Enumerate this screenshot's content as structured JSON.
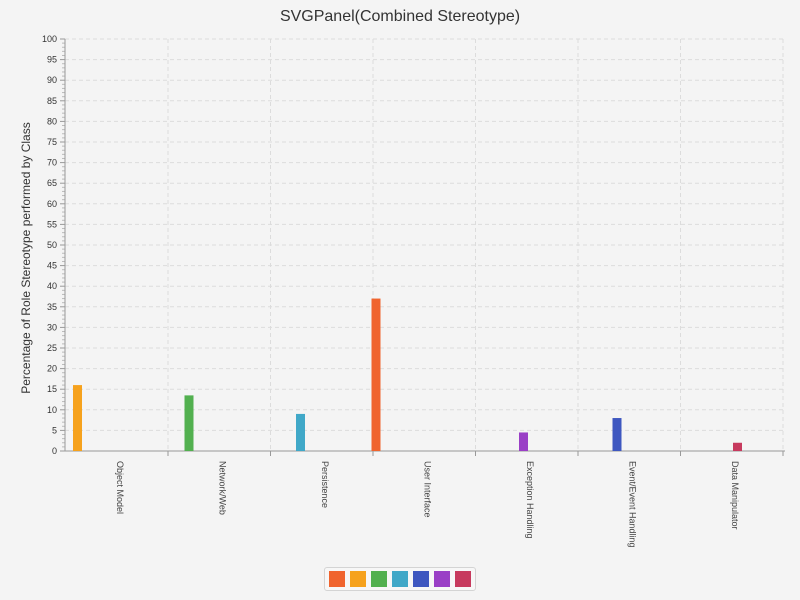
{
  "chart_data": {
    "type": "bar",
    "title": "SVGPanel(Combined Stereotype)",
    "xlabel": "",
    "ylabel": "Percentage of Role Stereotype performed by Class",
    "ylim": [
      0,
      100
    ],
    "yticks": [
      0,
      5,
      10,
      15,
      20,
      25,
      30,
      35,
      40,
      45,
      50,
      55,
      60,
      65,
      70,
      75,
      80,
      85,
      90,
      95,
      100
    ],
    "categories": [
      "Object Model",
      "Network/Web",
      "Persistence",
      "User Interface",
      "Exception Handling",
      "Event/Event Handling",
      "Data Manipulator"
    ],
    "series": [
      {
        "color": "#f0642e",
        "values": [
          0,
          0,
          0,
          37,
          0,
          0,
          0
        ]
      },
      {
        "color": "#f6a21d",
        "values": [
          16,
          0,
          0,
          0,
          0,
          0,
          0
        ]
      },
      {
        "color": "#52b04f",
        "values": [
          0,
          13.5,
          0,
          0,
          0,
          0,
          0
        ]
      },
      {
        "color": "#40a8c8",
        "values": [
          0,
          0,
          9,
          0,
          0,
          0,
          0
        ]
      },
      {
        "color": "#3e57c0",
        "values": [
          0,
          0,
          0,
          0,
          0,
          8,
          0
        ]
      },
      {
        "color": "#9a3fc6",
        "values": [
          0,
          0,
          0,
          0,
          4.5,
          0,
          0
        ]
      },
      {
        "color": "#c73a5e",
        "values": [
          0,
          0,
          0,
          0,
          0,
          0,
          2
        ]
      }
    ],
    "grid": true,
    "legend": "bottom-center"
  }
}
